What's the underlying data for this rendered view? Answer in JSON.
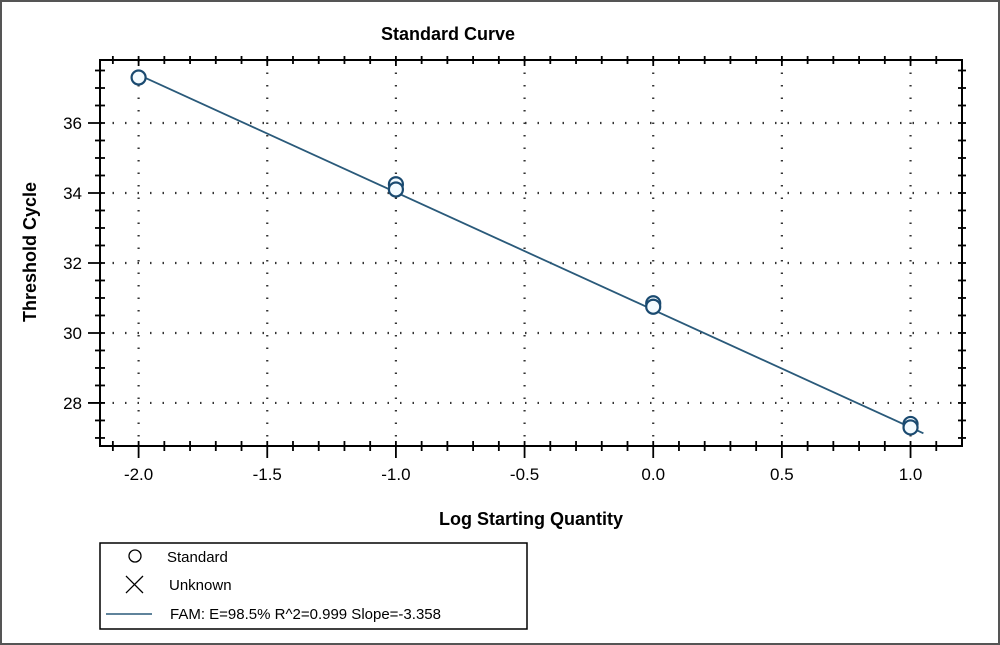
{
  "chart_data": {
    "type": "scatter",
    "title": "Standard Curve",
    "xlabel": "Log Starting Quantity",
    "ylabel": "Threshold Cycle",
    "xlim": [
      -2.15,
      1.2
    ],
    "ylim": [
      26.77,
      37.8
    ],
    "xticks": [
      -2.0,
      -1.5,
      -1.0,
      -0.5,
      0.0,
      0.5,
      1.0
    ],
    "xtick_labels": [
      "-2.0",
      "-1.5",
      "-1.0",
      "-0.5",
      "0.0",
      "0.5",
      "1.0"
    ],
    "yticks": [
      28,
      30,
      32,
      34,
      36
    ],
    "ytick_labels": [
      "28",
      "30",
      "32",
      "34",
      "36"
    ],
    "grid": "dotted",
    "series": [
      {
        "name": "Standard",
        "marker": "circle",
        "color": "#1a4a70",
        "points": [
          [
            -2.0,
            37.3
          ],
          [
            -1.0,
            34.25
          ],
          [
            -1.0,
            34.1
          ],
          [
            0.0,
            30.85
          ],
          [
            0.0,
            30.75
          ],
          [
            1.0,
            27.4
          ],
          [
            1.0,
            27.3
          ]
        ]
      },
      {
        "name": "Unknown",
        "marker": "x",
        "points": []
      }
    ],
    "fit": {
      "name": "FAM: E=98.5% R^2=0.999 Slope=-3.358",
      "slope": -3.358,
      "intercept": 30.66,
      "x_range": [
        -2.0,
        1.05
      ],
      "color": "#2a5a7a"
    },
    "legend": {
      "placement": "bottom-left",
      "entries": [
        "Standard",
        "Unknown",
        "FAM: E=98.5% R^2=0.999 Slope=-3.358"
      ]
    }
  }
}
